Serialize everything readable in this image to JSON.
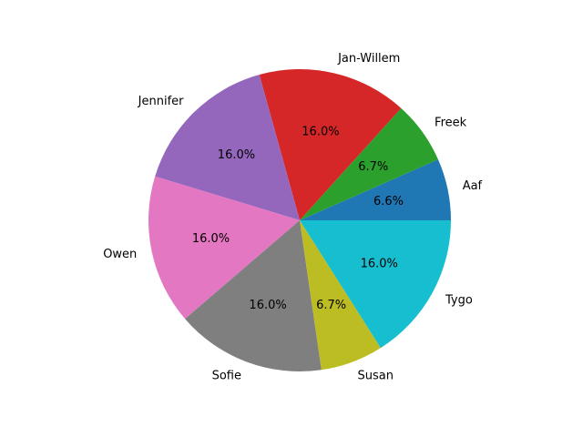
{
  "chart_data": {
    "type": "pie",
    "title": "",
    "start_angle_deg": 0,
    "counterclockwise": true,
    "slices": [
      {
        "label": "Aaf",
        "value": 6.6,
        "pct_label": "6.6%",
        "color": "#1f77b4"
      },
      {
        "label": "Freek",
        "value": 6.7,
        "pct_label": "6.7%",
        "color": "#2ca02c"
      },
      {
        "label": "Jan-Willem",
        "value": 16.0,
        "pct_label": "16.0%",
        "color": "#d62728"
      },
      {
        "label": "Jennifer",
        "value": 16.0,
        "pct_label": "16.0%",
        "color": "#9467bd"
      },
      {
        "label": "Owen",
        "value": 16.0,
        "pct_label": "16.0%",
        "color": "#e377c2"
      },
      {
        "label": "Sofie",
        "value": 16.0,
        "pct_label": "16.0%",
        "color": "#7f7f7f"
      },
      {
        "label": "Susan",
        "value": 6.7,
        "pct_label": "6.7%",
        "color": "#bcbd22"
      },
      {
        "label": "Tygo",
        "value": 16.0,
        "pct_label": "16.0%",
        "color": "#17becf"
      }
    ]
  }
}
